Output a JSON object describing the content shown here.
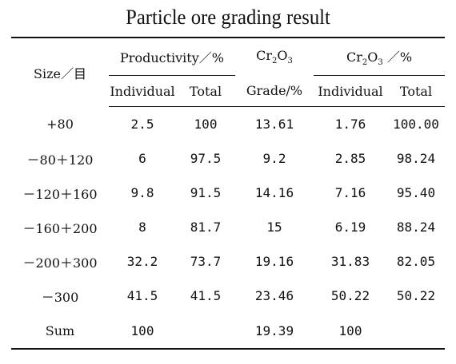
{
  "title": "Particle ore grading result",
  "headers": {
    "size": "Size／目",
    "productivity": "Productivity／%",
    "cr_grade_top": "Cr",
    "cr_grade_bottom": "Grade/%",
    "cr_dist": "Cr",
    "cr_dist_suffix": "／%",
    "individual_1": "Individual",
    "total_1": "Total",
    "individual_2": "Individual",
    "total_2": "Total"
  },
  "rows": [
    {
      "size": "+80",
      "prod_ind": "2.5",
      "prod_total": "100",
      "grade": "13.61",
      "dist_ind": "1.76",
      "dist_total": "100.00"
    },
    {
      "size": "－80＋120",
      "prod_ind": "6",
      "prod_total": "97.5",
      "grade": "9.2",
      "dist_ind": "2.85",
      "dist_total": "98.24"
    },
    {
      "size": "－120＋160",
      "prod_ind": "9.8",
      "prod_total": "91.5",
      "grade": "14.16",
      "dist_ind": "7.16",
      "dist_total": "95.40"
    },
    {
      "size": "－160＋200",
      "prod_ind": "8",
      "prod_total": "81.7",
      "grade": "15",
      "dist_ind": "6.19",
      "dist_total": "88.24"
    },
    {
      "size": "－200＋300",
      "prod_ind": "32.2",
      "prod_total": "73.7",
      "grade": "19.16",
      "dist_ind": "31.83",
      "dist_total": "82.05"
    },
    {
      "size": "－300",
      "prod_ind": "41.5",
      "prod_total": "41.5",
      "grade": "23.46",
      "dist_ind": "50.22",
      "dist_total": "50.22"
    },
    {
      "size": "Sum",
      "prod_ind": "100",
      "prod_total": "",
      "grade": "19.39",
      "dist_ind": "100",
      "dist_total": ""
    }
  ]
}
